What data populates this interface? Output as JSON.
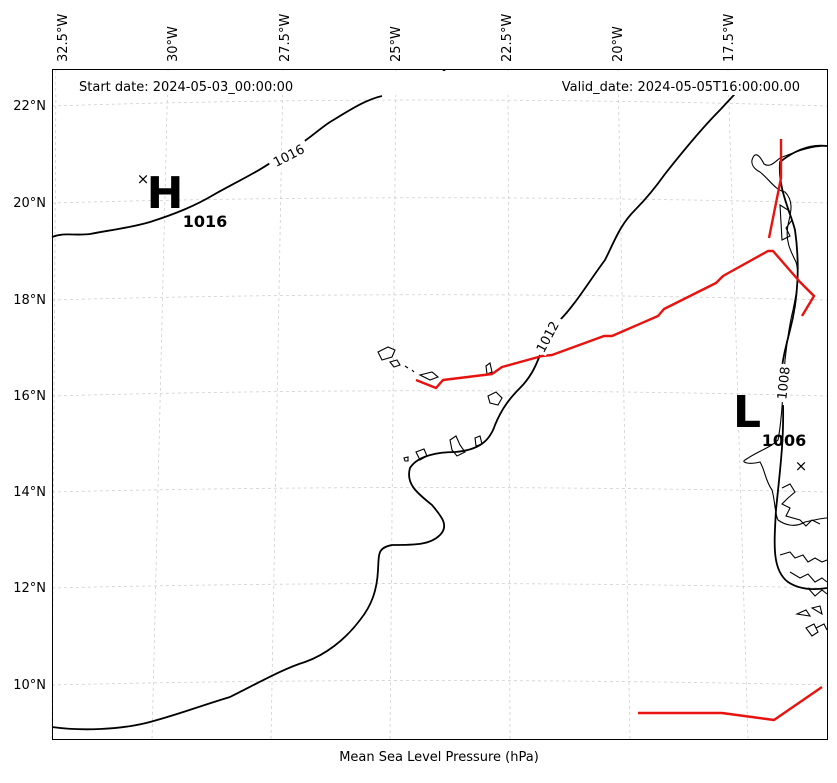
{
  "header": {
    "start_date": "Start date: 2024-05-03_00:00:00",
    "valid_date": "Valid_date: 2024-05-05T16:00:00.00"
  },
  "footer": {
    "label": "Mean Sea Level Pressure (hPa)"
  },
  "axes": {
    "longitudes": [
      "32.5°W",
      "30°W",
      "27.5°W",
      "25°W",
      "22.5°W",
      "20°W",
      "17.5°W"
    ],
    "latitudes": [
      "22°N",
      "20°N",
      "18°N",
      "16°N",
      "14°N",
      "12°N",
      "10°N"
    ]
  },
  "contour_labels": [
    "1016",
    "1012",
    "1008"
  ],
  "pressure_centers": {
    "high": {
      "letter": "H",
      "value": "1016",
      "marker": "×"
    },
    "low": {
      "letter": "L",
      "value": "1006",
      "marker": "×"
    }
  },
  "colors": {
    "isobar": "#000000",
    "front": "#e8120f",
    "grid": "#cfcfcf",
    "coastline": "#000000"
  }
}
